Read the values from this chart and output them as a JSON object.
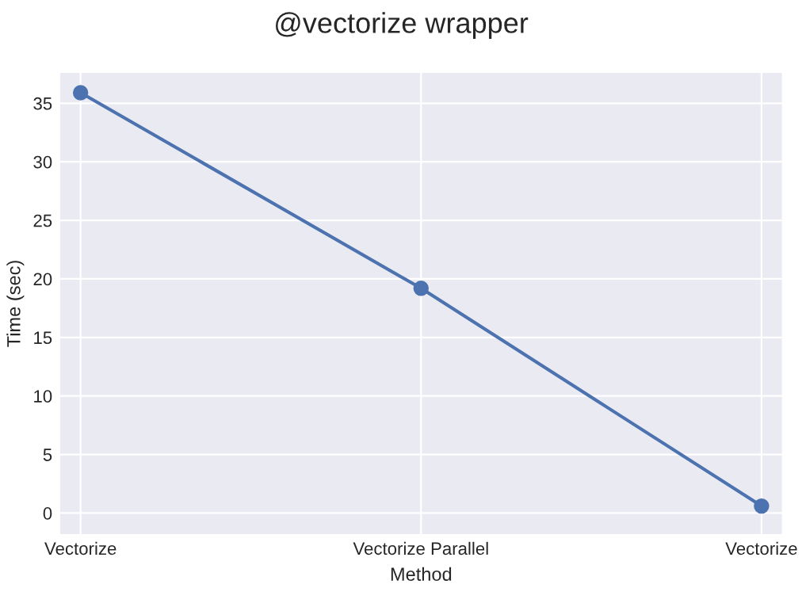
{
  "chart_data": {
    "type": "line",
    "title": "@vectorize wrapper",
    "xlabel": "Method",
    "ylabel": "Time (sec)",
    "categories": [
      "Vectorize",
      "Vectorize Parallel",
      "Vectorize"
    ],
    "series": [
      {
        "color": "#4c72b0",
        "values": [
          35.9,
          19.2,
          0.6
        ]
      }
    ],
    "ylim": [
      -1.8,
      37.6
    ],
    "yticks": [
      0,
      5,
      10,
      15,
      20,
      25,
      30,
      35
    ],
    "grid": true,
    "marker": "circle",
    "line_style": "solid"
  }
}
